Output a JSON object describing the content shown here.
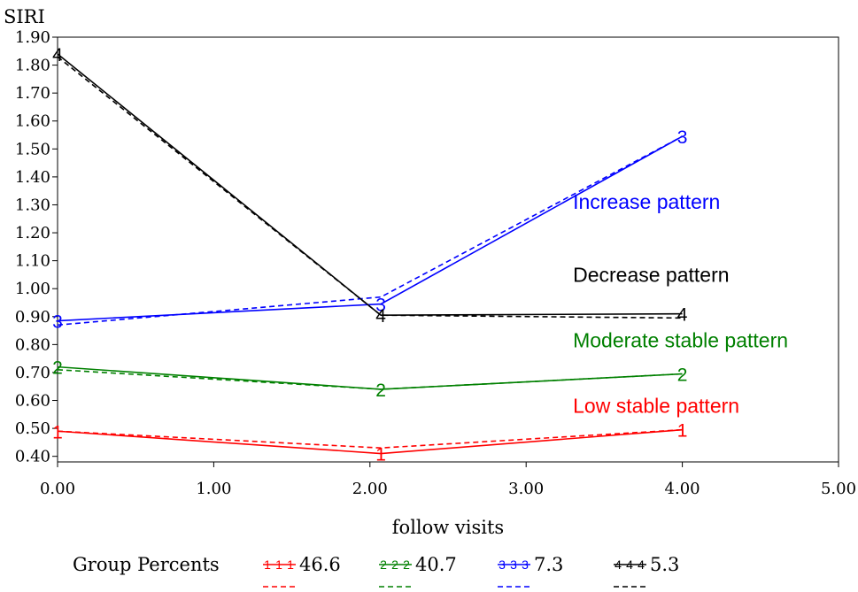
{
  "chart_data": {
    "type": "line",
    "ylabel": "SIRI",
    "xlabel": "follow visits",
    "xlim": [
      0,
      5
    ],
    "ylim": [
      0.38,
      1.9
    ],
    "x_ticks": [
      "0.00",
      "1.00",
      "2.00",
      "3.00",
      "4.00",
      "5.00"
    ],
    "y_ticks": [
      {
        "v": 0.4,
        "label": "0.40"
      },
      {
        "v": 0.5,
        "label": "0.50"
      },
      {
        "v": 0.6,
        "label": "0.60"
      },
      {
        "v": 0.7,
        "label": "0.70"
      },
      {
        "v": 0.8,
        "label": "0.80"
      },
      {
        "v": 0.9,
        "label": "0.90"
      },
      {
        "v": 1.0,
        "label": "1.00"
      },
      {
        "v": 1.1,
        "label": "1.10"
      },
      {
        "v": 1.2,
        "label": "1.20"
      },
      {
        "v": 1.3,
        "label": "1.30"
      },
      {
        "v": 1.4,
        "label": "1.40"
      },
      {
        "v": 1.5,
        "label": "1.50"
      },
      {
        "v": 1.6,
        "label": "1.60"
      },
      {
        "v": 1.7,
        "label": "1.70"
      },
      {
        "v": 1.8,
        "label": "1.80"
      },
      {
        "v": 1.9,
        "label": "1.90"
      }
    ],
    "grid": false,
    "series": [
      {
        "marker": "1",
        "color": "#ff0000",
        "x": [
          0,
          2.07,
          4.0
        ],
        "observed": [
          0.49,
          0.41,
          0.495
        ],
        "predicted": [
          0.49,
          0.43,
          0.495
        ]
      },
      {
        "marker": "2",
        "color": "#008000",
        "x": [
          0,
          2.07,
          4.0
        ],
        "observed": [
          0.72,
          0.64,
          0.695
        ],
        "predicted": [
          0.71,
          0.64,
          0.695
        ]
      },
      {
        "marker": "3",
        "color": "#0000ff",
        "x": [
          0,
          2.07,
          4.0
        ],
        "observed": [
          0.885,
          0.945,
          1.545
        ],
        "predicted": [
          0.87,
          0.97,
          1.545
        ]
      },
      {
        "marker": "4",
        "color": "#000000",
        "x": [
          0,
          2.07,
          4.0
        ],
        "observed": [
          1.84,
          0.905,
          0.91
        ],
        "predicted": [
          1.83,
          0.905,
          0.895
        ]
      }
    ],
    "annotations": [
      {
        "text": "Increase pattern",
        "color": "#0000ff",
        "x": 3.3,
        "y": 1.285
      },
      {
        "text": "Decrease pattern",
        "color": "#000000",
        "x": 3.3,
        "y": 1.025
      },
      {
        "text": "Moderate stable pattern",
        "color": "#008000",
        "x": 3.3,
        "y": 0.79
      },
      {
        "text": "Low stable pattern",
        "color": "#ff0000",
        "x": 3.3,
        "y": 0.555
      }
    ],
    "legend": {
      "title": "Group Percents",
      "placement": "bottom",
      "entries": [
        {
          "marker": "1",
          "color": "#ff0000",
          "value": "46.6"
        },
        {
          "marker": "2",
          "color": "#008000",
          "value": "40.7"
        },
        {
          "marker": "3",
          "color": "#0000ff",
          "value": "7.3"
        },
        {
          "marker": "4",
          "color": "#000000",
          "value": "5.3"
        }
      ]
    }
  }
}
